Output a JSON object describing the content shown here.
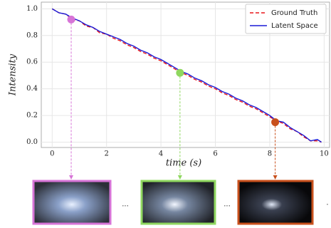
{
  "chart_data": {
    "type": "line",
    "xlabel": "time (s)",
    "ylabel": "Intensity",
    "x": [
      0,
      0.25,
      0.5,
      0.75,
      1.0,
      1.25,
      1.5,
      1.75,
      2.0,
      2.25,
      2.5,
      2.75,
      3.0,
      3.25,
      3.5,
      3.75,
      4.0,
      4.25,
      4.5,
      4.75,
      5.0,
      5.25,
      5.5,
      5.75,
      6.0,
      6.25,
      6.5,
      6.75,
      7.0,
      7.25,
      7.5,
      7.75,
      8.0,
      8.25,
      8.5,
      8.75,
      9.0,
      9.25,
      9.5,
      9.75,
      9.9
    ],
    "series": [
      {
        "name": "Ground Truth",
        "color": "#e8161b",
        "dashed": true,
        "values": [
          1.0,
          0.97,
          0.96,
          0.92,
          0.91,
          0.87,
          0.86,
          0.82,
          0.81,
          0.78,
          0.76,
          0.73,
          0.71,
          0.68,
          0.66,
          0.63,
          0.61,
          0.58,
          0.55,
          0.52,
          0.5,
          0.47,
          0.45,
          0.42,
          0.4,
          0.37,
          0.35,
          0.32,
          0.3,
          0.27,
          0.25,
          0.22,
          0.19,
          0.16,
          0.14,
          0.1,
          0.08,
          0.04,
          0.01,
          0.01,
          0.0
        ]
      },
      {
        "name": "Latent Space",
        "color": "#1a1ad6",
        "dashed": false,
        "values": [
          1.0,
          0.97,
          0.96,
          0.93,
          0.91,
          0.88,
          0.86,
          0.83,
          0.81,
          0.79,
          0.77,
          0.74,
          0.72,
          0.69,
          0.67,
          0.64,
          0.62,
          0.59,
          0.56,
          0.53,
          0.51,
          0.48,
          0.46,
          0.43,
          0.41,
          0.38,
          0.36,
          0.33,
          0.31,
          0.28,
          0.26,
          0.23,
          0.2,
          0.16,
          0.15,
          0.11,
          0.08,
          0.05,
          0.01,
          0.02,
          0.0
        ]
      }
    ],
    "markers": [
      {
        "x": 0.7,
        "y": 0.92,
        "color": "#d774d7"
      },
      {
        "x": 4.7,
        "y": 0.52,
        "color": "#8fd75f"
      },
      {
        "x": 8.2,
        "y": 0.15,
        "color": "#c8501c"
      }
    ],
    "xlim": [
      -0.4,
      10.2
    ],
    "ylim": [
      -0.04,
      1.05
    ],
    "xticks": [
      0,
      2,
      4,
      6,
      8,
      10
    ],
    "yticks": [
      {
        "value": 0,
        "label": "0.0"
      },
      {
        "value": 0.2,
        "label": "0.2"
      },
      {
        "value": 0.4,
        "label": "0.4"
      },
      {
        "value": 0.6,
        "label": "0.6"
      },
      {
        "value": 0.8,
        "label": "0.8"
      },
      {
        "value": 1.0,
        "label": "1.0"
      }
    ],
    "grid": true,
    "legend": "upper right",
    "ellipses": [
      "...",
      "...",
      "."
    ]
  }
}
